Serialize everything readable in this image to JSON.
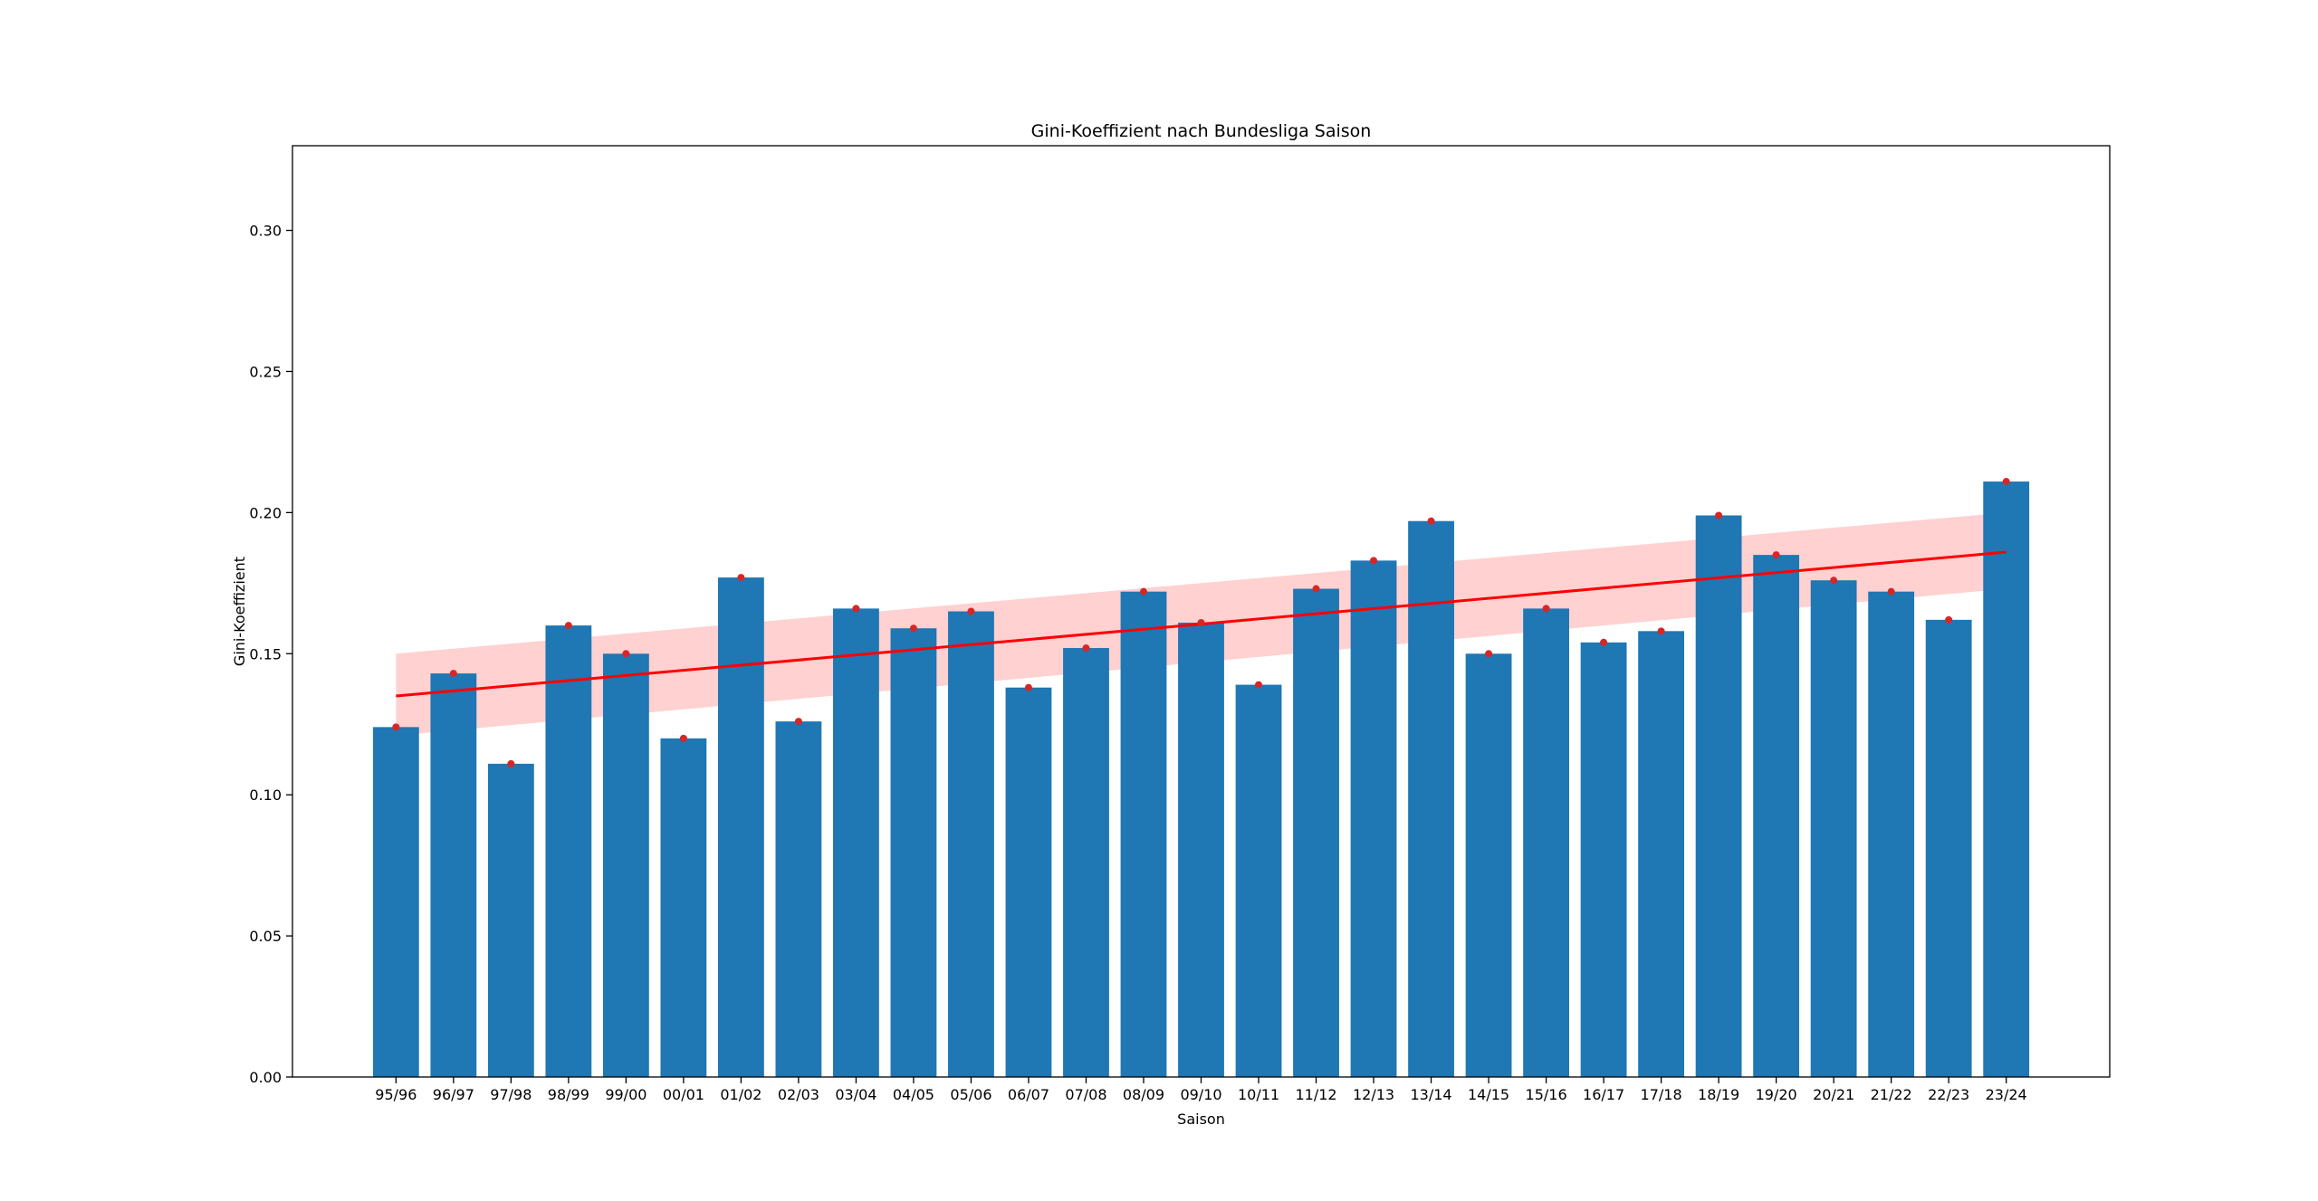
{
  "chart_data": {
    "type": "bar",
    "title": "Gini-Koeffizient nach Bundesliga Saison",
    "xlabel": "Saison",
    "ylabel": "Gini-Koeffizient",
    "categories": [
      "95/96",
      "96/97",
      "97/98",
      "98/99",
      "99/00",
      "00/01",
      "01/02",
      "02/03",
      "03/04",
      "04/05",
      "05/06",
      "06/07",
      "07/08",
      "08/09",
      "09/10",
      "10/11",
      "11/12",
      "12/13",
      "13/14",
      "14/15",
      "15/16",
      "16/17",
      "17/18",
      "18/19",
      "19/20",
      "20/21",
      "21/22",
      "22/23",
      "23/24"
    ],
    "values": [
      0.124,
      0.143,
      0.111,
      0.16,
      0.15,
      0.12,
      0.177,
      0.126,
      0.166,
      0.159,
      0.165,
      0.138,
      0.152,
      0.172,
      0.161,
      0.139,
      0.173,
      0.183,
      0.197,
      0.15,
      0.166,
      0.154,
      0.158,
      0.199,
      0.185,
      0.176,
      0.172,
      0.162,
      0.211
    ],
    "ylim": [
      0,
      0.33
    ],
    "yticks": [
      0.0,
      0.05,
      0.1,
      0.15,
      0.2,
      0.25,
      0.3
    ],
    "ytick_labels": [
      "0.00",
      "0.05",
      "0.10",
      "0.15",
      "0.20",
      "0.25",
      "0.30"
    ],
    "grid": false,
    "bar_color": "#1f77b4",
    "point_color": "#d62728",
    "trend": {
      "type": "linear-regression",
      "start": 0.135,
      "end": 0.186,
      "color": "#ff0000",
      "band_color": "#ffcccc",
      "band_lower_start": 0.121,
      "band_upper_start": 0.15,
      "band_lower_end": 0.173,
      "band_upper_end": 0.2
    }
  }
}
